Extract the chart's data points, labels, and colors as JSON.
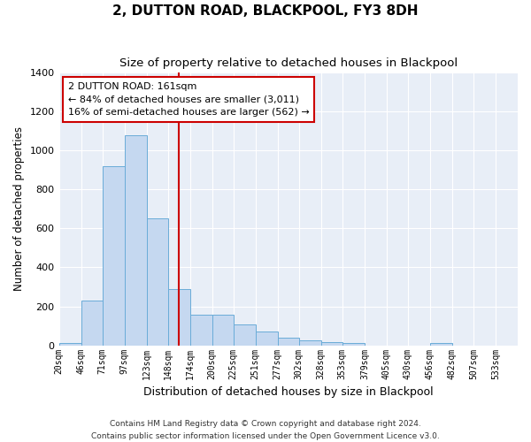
{
  "title": "2, DUTTON ROAD, BLACKPOOL, FY3 8DH",
  "subtitle": "Size of property relative to detached houses in Blackpool",
  "xlabel": "Distribution of detached houses by size in Blackpool",
  "ylabel": "Number of detached properties",
  "bar_labels": [
    "20sqm",
    "46sqm",
    "71sqm",
    "97sqm",
    "123sqm",
    "148sqm",
    "174sqm",
    "200sqm",
    "225sqm",
    "251sqm",
    "277sqm",
    "302sqm",
    "328sqm",
    "353sqm",
    "379sqm",
    "405sqm",
    "430sqm",
    "456sqm",
    "482sqm",
    "507sqm",
    "533sqm"
  ],
  "bar_values": [
    12,
    230,
    920,
    1080,
    650,
    290,
    155,
    155,
    105,
    70,
    40,
    25,
    15,
    13,
    0,
    0,
    0,
    13,
    0,
    0,
    0
  ],
  "bar_color": "#c5d8f0",
  "bar_edge_color": "#6aacd8",
  "background_color": "#ffffff",
  "plot_bg_color": "#e8eef7",
  "grid_color": "#ffffff",
  "vline_color": "#cc0000",
  "vline_x": 161,
  "annotation_line1": "2 DUTTON ROAD: 161sqm",
  "annotation_line2": "← 84% of detached houses are smaller (3,011)",
  "annotation_line3": "16% of semi-detached houses are larger (562) →",
  "annotation_box_facecolor": "#ffffff",
  "annotation_box_edgecolor": "#cc0000",
  "ylim": [
    0,
    1400
  ],
  "yticks": [
    0,
    200,
    400,
    600,
    800,
    1000,
    1200,
    1400
  ],
  "footer_line1": "Contains HM Land Registry data © Crown copyright and database right 2024.",
  "footer_line2": "Contains public sector information licensed under the Open Government Licence v3.0."
}
